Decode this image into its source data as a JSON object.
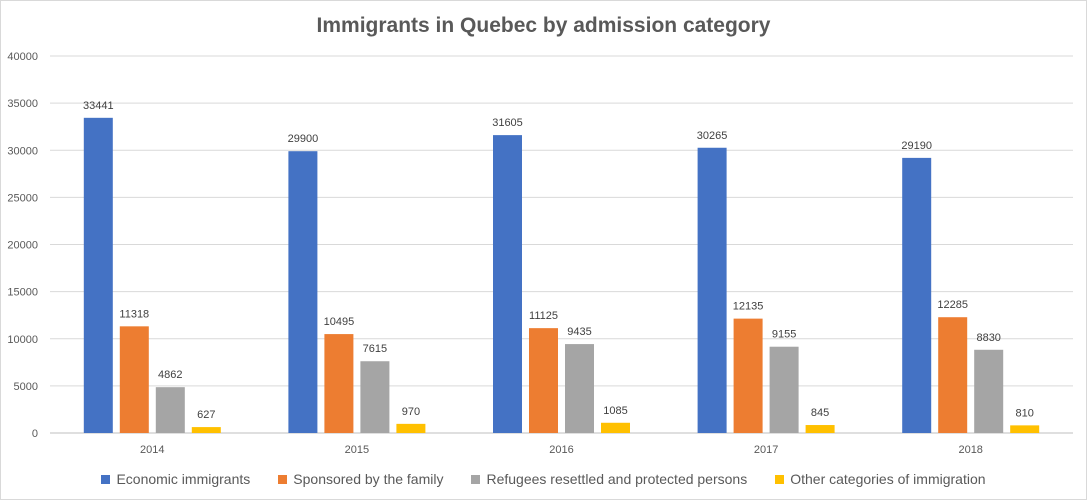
{
  "chart_data": {
    "type": "bar",
    "title": "Immigrants in Quebec by admission category",
    "categories": [
      "2014",
      "2015",
      "2016",
      "2017",
      "2018"
    ],
    "series": [
      {
        "name": "Economic immigrants",
        "color": "#4472c4",
        "values": [
          33441,
          29900,
          31605,
          30265,
          29190
        ]
      },
      {
        "name": "Sponsored by the family",
        "color": "#ed7d31",
        "values": [
          11318,
          10495,
          11125,
          12135,
          12285
        ]
      },
      {
        "name": "Refugees resettled and protected persons",
        "color": "#a5a5a5",
        "values": [
          4862,
          7615,
          9435,
          9155,
          8830
        ]
      },
      {
        "name": "Other categories of immigration",
        "color": "#ffc000",
        "values": [
          627,
          970,
          1085,
          845,
          810
        ]
      }
    ],
    "ylim": [
      0,
      40000
    ],
    "yticks": [
      "0",
      "5000",
      "10000",
      "15000",
      "20000",
      "25000",
      "30000",
      "35000",
      "40000"
    ],
    "grid": true,
    "legend_position": "bottom",
    "data_labels": true
  }
}
